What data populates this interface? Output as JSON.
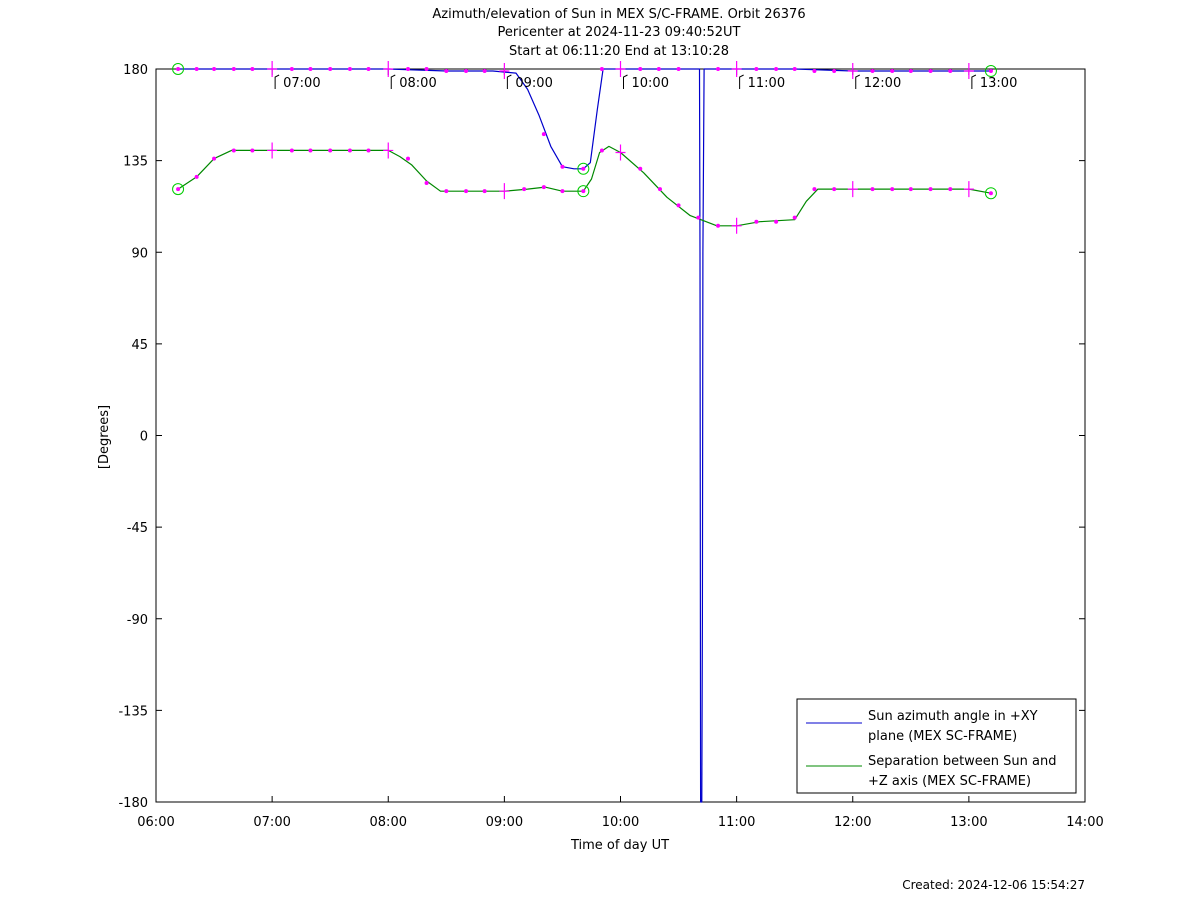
{
  "chart_data": {
    "type": "line",
    "title": [
      "Azimuth/elevation of Sun in MEX S/C-FRAME.  Orbit 26376",
      "Pericenter at 2024-11-23 09:40:52UT",
      "Start at 06:11:20 End at 13:10:28"
    ],
    "xlabel": "Time of day UT",
    "ylabel": "[Degrees]",
    "xlim": [
      6,
      14
    ],
    "ylim": [
      -180,
      180
    ],
    "x_ticks": [
      {
        "v": 6,
        "label": "06:00"
      },
      {
        "v": 7,
        "label": "07:00"
      },
      {
        "v": 8,
        "label": "08:00"
      },
      {
        "v": 9,
        "label": "09:00"
      },
      {
        "v": 10,
        "label": "10:00"
      },
      {
        "v": 11,
        "label": "11:00"
      },
      {
        "v": 12,
        "label": "12:00"
      },
      {
        "v": 13,
        "label": "13:00"
      },
      {
        "v": 14,
        "label": "14:00"
      }
    ],
    "y_ticks": [
      {
        "v": 180,
        "label": "180"
      },
      {
        "v": 135,
        "label": "135"
      },
      {
        "v": 90,
        "label": "90"
      },
      {
        "v": 45,
        "label": "45"
      },
      {
        "v": 0,
        "label": "0"
      },
      {
        "v": -45,
        "label": "-45"
      },
      {
        "v": -90,
        "label": "-90"
      },
      {
        "v": -135,
        "label": "-135"
      },
      {
        "v": -180,
        "label": "-180"
      }
    ],
    "hour_markers": [
      {
        "x": 7.0,
        "label": "07:00"
      },
      {
        "x": 8.0,
        "label": "08:00"
      },
      {
        "x": 9.0,
        "label": "09:00"
      },
      {
        "x": 10.0,
        "label": "10:00"
      },
      {
        "x": 11.0,
        "label": "11:00"
      },
      {
        "x": 12.0,
        "label": "12:00"
      },
      {
        "x": 13.0,
        "label": "13:00"
      }
    ],
    "series": [
      {
        "name": "Sun azimuth angle in +XY plane (MEX SC-FRAME)",
        "legend_lines": [
          "Sun azimuth angle in +XY",
          "plane (MEX SC-FRAME)"
        ],
        "color": "#0000cc",
        "x": [
          6.19,
          6.5,
          7.0,
          7.5,
          8.0,
          8.5,
          8.9,
          9.1,
          9.2,
          9.3,
          9.4,
          9.5,
          9.6,
          9.68,
          9.74,
          9.8,
          9.85,
          10.0,
          10.5,
          10.68,
          10.685,
          10.69,
          10.7,
          10.705,
          10.71,
          10.72,
          10.725,
          10.74,
          11.0,
          11.5,
          12.0,
          12.5,
          13.0,
          13.19
        ],
        "y": [
          180,
          180,
          180,
          180,
          180,
          179,
          179,
          178,
          170,
          157,
          142,
          132,
          131,
          131,
          134,
          160,
          180,
          180,
          180,
          180,
          90,
          -180,
          -180,
          -90,
          90,
          180,
          180,
          180,
          180,
          180,
          179,
          179,
          179,
          179
        ]
      },
      {
        "name": "Separation between Sun and +Z axis (MEX SC-FRAME)",
        "legend_lines": [
          "Separation between Sun and",
          "+Z axis (MEX SC-FRAME)"
        ],
        "color": "#008800",
        "x": [
          6.19,
          6.35,
          6.5,
          6.65,
          7.0,
          7.5,
          8.0,
          8.1,
          8.2,
          8.33,
          8.45,
          8.6,
          9.0,
          9.2,
          9.35,
          9.5,
          9.68,
          9.75,
          9.82,
          9.9,
          10.0,
          10.2,
          10.4,
          10.6,
          10.83,
          11.0,
          11.2,
          11.5,
          11.6,
          11.7,
          12.0,
          12.5,
          13.0,
          13.19
        ],
        "y": [
          121,
          127,
          136,
          140,
          140,
          140,
          140,
          137,
          133,
          125,
          120,
          120,
          120,
          121,
          122,
          120,
          120,
          126,
          139,
          142,
          139,
          129,
          117,
          108,
          103,
          103,
          105,
          106,
          115,
          121,
          121,
          121,
          121,
          119
        ]
      }
    ],
    "markers": {
      "color": "#ff00ff",
      "circle_color": "#00cc00",
      "circles": [
        {
          "x": 6.19,
          "y": 180
        },
        {
          "x": 6.19,
          "y": 121
        },
        {
          "x": 9.68,
          "y": 131
        },
        {
          "x": 9.68,
          "y": 120
        },
        {
          "x": 13.19,
          "y": 179
        },
        {
          "x": 13.19,
          "y": 119
        }
      ],
      "dots": [
        {
          "x": 6.35,
          "y": 180
        },
        {
          "x": 6.5,
          "y": 180
        },
        {
          "x": 6.67,
          "y": 180
        },
        {
          "x": 6.83,
          "y": 180
        },
        {
          "x": 7.17,
          "y": 180
        },
        {
          "x": 7.33,
          "y": 180
        },
        {
          "x": 7.5,
          "y": 180
        },
        {
          "x": 7.67,
          "y": 180
        },
        {
          "x": 7.83,
          "y": 180
        },
        {
          "x": 8.17,
          "y": 180
        },
        {
          "x": 8.33,
          "y": 180
        },
        {
          "x": 8.5,
          "y": 179
        },
        {
          "x": 8.67,
          "y": 179
        },
        {
          "x": 8.83,
          "y": 179
        },
        {
          "x": 9.34,
          "y": 148
        },
        {
          "x": 9.5,
          "y": 132
        },
        {
          "x": 9.84,
          "y": 180
        },
        {
          "x": 10.17,
          "y": 180
        },
        {
          "x": 10.33,
          "y": 180
        },
        {
          "x": 10.5,
          "y": 180
        },
        {
          "x": 10.84,
          "y": 180
        },
        {
          "x": 11.17,
          "y": 180
        },
        {
          "x": 11.34,
          "y": 180
        },
        {
          "x": 11.5,
          "y": 180
        },
        {
          "x": 11.67,
          "y": 179
        },
        {
          "x": 11.84,
          "y": 179
        },
        {
          "x": 12.17,
          "y": 179
        },
        {
          "x": 12.34,
          "y": 179
        },
        {
          "x": 12.5,
          "y": 179
        },
        {
          "x": 12.67,
          "y": 179
        },
        {
          "x": 12.84,
          "y": 179
        },
        {
          "x": 6.35,
          "y": 127
        },
        {
          "x": 6.5,
          "y": 136
        },
        {
          "x": 6.67,
          "y": 140
        },
        {
          "x": 6.83,
          "y": 140
        },
        {
          "x": 7.17,
          "y": 140
        },
        {
          "x": 7.33,
          "y": 140
        },
        {
          "x": 7.5,
          "y": 140
        },
        {
          "x": 7.67,
          "y": 140
        },
        {
          "x": 7.83,
          "y": 140
        },
        {
          "x": 8.17,
          "y": 136
        },
        {
          "x": 8.33,
          "y": 124
        },
        {
          "x": 8.5,
          "y": 120
        },
        {
          "x": 8.67,
          "y": 120
        },
        {
          "x": 8.83,
          "y": 120
        },
        {
          "x": 9.17,
          "y": 121
        },
        {
          "x": 9.34,
          "y": 122
        },
        {
          "x": 9.5,
          "y": 120
        },
        {
          "x": 9.84,
          "y": 140
        },
        {
          "x": 10.17,
          "y": 131
        },
        {
          "x": 10.34,
          "y": 121
        },
        {
          "x": 10.5,
          "y": 113
        },
        {
          "x": 10.67,
          "y": 107
        },
        {
          "x": 10.84,
          "y": 103
        },
        {
          "x": 11.17,
          "y": 105
        },
        {
          "x": 11.34,
          "y": 105
        },
        {
          "x": 11.5,
          "y": 107
        },
        {
          "x": 11.67,
          "y": 121
        },
        {
          "x": 11.84,
          "y": 121
        },
        {
          "x": 12.17,
          "y": 121
        },
        {
          "x": 12.34,
          "y": 121
        },
        {
          "x": 12.5,
          "y": 121
        },
        {
          "x": 12.67,
          "y": 121
        },
        {
          "x": 12.84,
          "y": 121
        }
      ],
      "crosses": [
        {
          "x": 7.0,
          "y": 180
        },
        {
          "x": 8.0,
          "y": 180
        },
        {
          "x": 9.0,
          "y": 179
        },
        {
          "x": 10.0,
          "y": 180
        },
        {
          "x": 11.0,
          "y": 180
        },
        {
          "x": 12.0,
          "y": 179
        },
        {
          "x": 13.0,
          "y": 179
        },
        {
          "x": 7.0,
          "y": 140
        },
        {
          "x": 8.0,
          "y": 140
        },
        {
          "x": 9.0,
          "y": 120
        },
        {
          "x": 10.0,
          "y": 139
        },
        {
          "x": 11.0,
          "y": 103
        },
        {
          "x": 12.0,
          "y": 121
        },
        {
          "x": 13.0,
          "y": 121
        }
      ]
    },
    "legend_position": "bottom-right",
    "grid": false
  },
  "footer": {
    "created": "Created: 2024-12-06 15:54:27"
  }
}
